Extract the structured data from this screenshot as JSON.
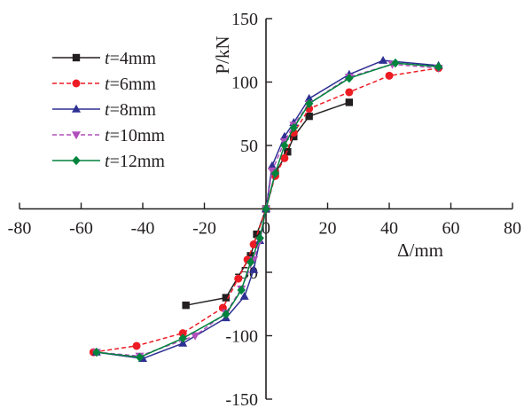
{
  "chart_data": {
    "type": "line",
    "title": "",
    "xlabel": "Δ/mm",
    "ylabel": "P/kN",
    "xlim": [
      -80,
      80
    ],
    "ylim": [
      -150,
      150
    ],
    "x_ticks": [
      -80,
      -60,
      -40,
      -20,
      0,
      20,
      40,
      60,
      80
    ],
    "y_ticks": [
      -150,
      -100,
      -50,
      0,
      50,
      100,
      150
    ],
    "legend_position": "top-left",
    "grid": false,
    "series": [
      {
        "name": "t=4mm",
        "legend_var": "t",
        "legend_rest": "=4mm",
        "color": "#231f20",
        "dash": "solid",
        "marker": "square",
        "points": [
          [
            -26,
            -76
          ],
          [
            -13,
            -70
          ],
          [
            -5,
            -37
          ],
          [
            -3,
            -20
          ],
          [
            0,
            0
          ],
          [
            3,
            28
          ],
          [
            7,
            45
          ],
          [
            9,
            57
          ],
          [
            14,
            73
          ],
          [
            27,
            84
          ]
        ]
      },
      {
        "name": "t=6mm",
        "legend_var": "t",
        "legend_rest": "=6mm",
        "color": "#ed1c24",
        "dash": "dashed",
        "marker": "circle",
        "points": [
          [
            -56,
            -113
          ],
          [
            -42,
            -108
          ],
          [
            -27,
            -98
          ],
          [
            -14,
            -78
          ],
          [
            -9,
            -55
          ],
          [
            -6,
            -40
          ],
          [
            -4,
            -28
          ],
          [
            0,
            0
          ],
          [
            3,
            26
          ],
          [
            6,
            40
          ],
          [
            9,
            60
          ],
          [
            14,
            79
          ],
          [
            27,
            92
          ],
          [
            40,
            105
          ],
          [
            56,
            111
          ]
        ]
      },
      {
        "name": "t=8mm",
        "legend_var": "t",
        "legend_rest": "=8mm",
        "color": "#2e3192",
        "dash": "solid",
        "marker": "triangle-up",
        "points": [
          [
            -55,
            -113
          ],
          [
            -40,
            -118
          ],
          [
            -27,
            -106
          ],
          [
            -13,
            -86
          ],
          [
            -7,
            -69
          ],
          [
            -4,
            -48
          ],
          [
            -2,
            -25
          ],
          [
            0,
            0
          ],
          [
            2,
            34
          ],
          [
            6,
            57
          ],
          [
            9,
            68
          ],
          [
            14,
            87
          ],
          [
            27,
            106
          ],
          [
            38,
            117
          ],
          [
            56,
            113
          ]
        ]
      },
      {
        "name": "t=10mm",
        "legend_var": "t",
        "legend_rest": "=10mm",
        "color": "#b04fbc",
        "dash": "dashed",
        "marker": "triangle-down",
        "points": [
          [
            -55,
            -113
          ],
          [
            -41,
            -116
          ],
          [
            -23,
            -100
          ],
          [
            -13,
            -82
          ],
          [
            -8,
            -63
          ],
          [
            -4,
            -40
          ],
          [
            -2,
            -25
          ],
          [
            0,
            0
          ],
          [
            2,
            30
          ],
          [
            6,
            53
          ],
          [
            9,
            66
          ],
          [
            14,
            83
          ],
          [
            27,
            104
          ],
          [
            41,
            114
          ],
          [
            56,
            111
          ]
        ]
      },
      {
        "name": "t=12mm",
        "legend_var": "t",
        "legend_rest": "=12mm",
        "color": "#00843d",
        "dash": "solid",
        "marker": "diamond",
        "points": [
          [
            -55,
            -113
          ],
          [
            -41,
            -117
          ],
          [
            -27,
            -102
          ],
          [
            -13,
            -83
          ],
          [
            -8,
            -64
          ],
          [
            -5,
            -42
          ],
          [
            -2,
            -23
          ],
          [
            0,
            0
          ],
          [
            3,
            28
          ],
          [
            6,
            50
          ],
          [
            9,
            64
          ],
          [
            14,
            83
          ],
          [
            27,
            103
          ],
          [
            42,
            115
          ],
          [
            56,
            112
          ]
        ]
      }
    ]
  }
}
